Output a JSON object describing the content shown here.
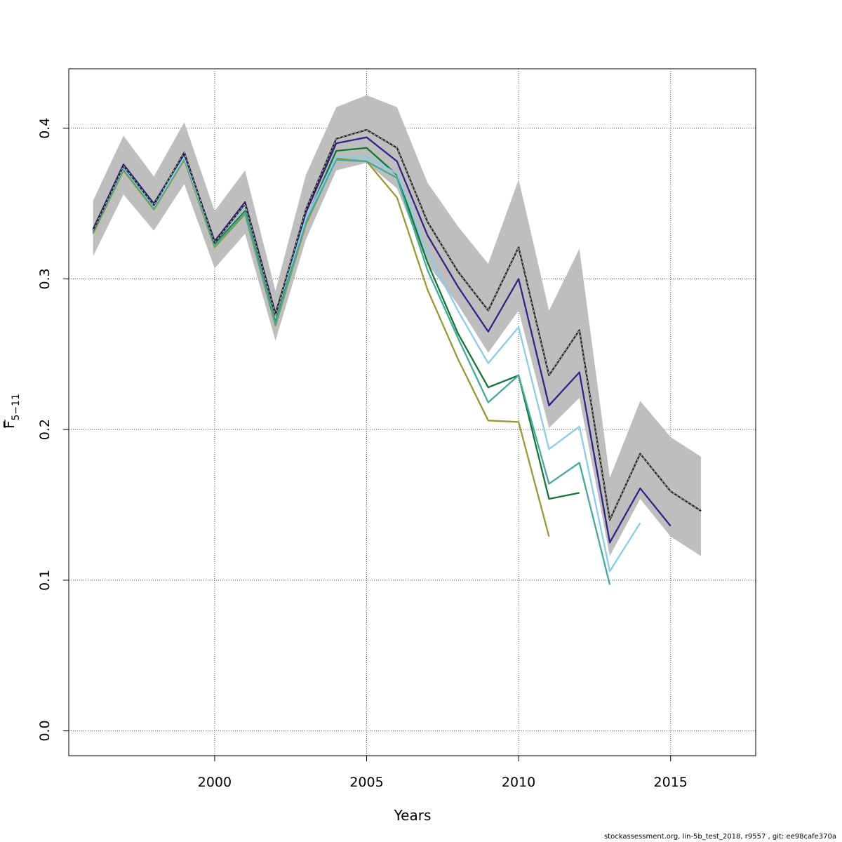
{
  "footer": "stockassessment.org, lin-5b_test_2018, r9557 , git: ee98cafe370a",
  "chart_data": {
    "type": "line",
    "title": "",
    "xlabel": "Years",
    "ylabel_main": "F",
    "ylabel_sub": "5−11",
    "xlim": [
      1995.2,
      2017.8
    ],
    "ylim": [
      -0.0165,
      0.4395
    ],
    "x_ticks": [
      2000,
      2005,
      2010,
      2015
    ],
    "x_tick_labels": [
      "2000",
      "2005",
      "2010",
      "2015"
    ],
    "y_ticks": [
      0.0,
      0.1,
      0.2,
      0.3,
      0.4
    ],
    "y_tick_labels": [
      "0.0",
      "0.1",
      "0.2",
      "0.3",
      "0.4"
    ],
    "grid": true,
    "confidence_band": {
      "color": "#bebebe",
      "x": [
        1996,
        1997,
        1998,
        1999,
        2000,
        2001,
        2002,
        2003,
        2004,
        2005,
        2006,
        2007,
        2008,
        2009,
        2010,
        2011,
        2012,
        2013,
        2014,
        2015,
        2016
      ],
      "lower": [
        0.315,
        0.356,
        0.332,
        0.363,
        0.307,
        0.33,
        0.259,
        0.326,
        0.372,
        0.377,
        0.36,
        0.31,
        0.283,
        0.251,
        0.279,
        0.201,
        0.221,
        0.116,
        0.154,
        0.129,
        0.116
      ],
      "upper": [
        0.352,
        0.395,
        0.368,
        0.404,
        0.345,
        0.372,
        0.292,
        0.369,
        0.414,
        0.422,
        0.414,
        0.364,
        0.335,
        0.31,
        0.366,
        0.279,
        0.32,
        0.168,
        0.219,
        0.195,
        0.182
      ]
    },
    "series": [
      {
        "color": "#999933",
        "x": [
          1996,
          1997,
          1998,
          1999,
          2000,
          2001,
          2002,
          2003,
          2004,
          2005,
          2006,
          2007,
          2008,
          2009,
          2010,
          2011
        ],
        "values": [
          0.33,
          0.372,
          0.346,
          0.379,
          0.321,
          0.343,
          0.269,
          0.336,
          0.38,
          0.378,
          0.354,
          0.293,
          0.247,
          0.206,
          0.205,
          0.129
        ]
      },
      {
        "color": "#117733",
        "x": [
          1996,
          1997,
          1998,
          1999,
          2000,
          2001,
          2002,
          2003,
          2004,
          2005,
          2006,
          2007,
          2008,
          2009,
          2010,
          2011,
          2012
        ],
        "values": [
          0.331,
          0.373,
          0.347,
          0.381,
          0.323,
          0.345,
          0.271,
          0.339,
          0.385,
          0.387,
          0.369,
          0.311,
          0.264,
          0.228,
          0.236,
          0.154,
          0.158
        ]
      },
      {
        "color": "#44aa99",
        "x": [
          1996,
          1997,
          1998,
          1999,
          2000,
          2001,
          2002,
          2003,
          2004,
          2005,
          2006,
          2007,
          2008,
          2009,
          2010,
          2011,
          2012,
          2013
        ],
        "values": [
          0.331,
          0.373,
          0.347,
          0.38,
          0.322,
          0.344,
          0.27,
          0.338,
          0.379,
          0.378,
          0.367,
          0.306,
          0.261,
          0.218,
          0.236,
          0.164,
          0.178,
          0.097
        ]
      },
      {
        "color": "#88ccee",
        "x": [
          1996,
          1997,
          1998,
          1999,
          2000,
          2001,
          2002,
          2003,
          2004,
          2005,
          2006,
          2007,
          2008,
          2009,
          2010,
          2011,
          2012,
          2013,
          2014
        ],
        "values": [
          0.332,
          0.374,
          0.348,
          0.381,
          0.324,
          0.349,
          0.276,
          0.34,
          0.381,
          0.381,
          0.37,
          0.318,
          0.279,
          0.244,
          0.268,
          0.187,
          0.202,
          0.106,
          0.138
        ]
      },
      {
        "color": "#332288",
        "x": [
          1996,
          1997,
          1998,
          1999,
          2000,
          2001,
          2002,
          2003,
          2004,
          2005,
          2006,
          2007,
          2008,
          2009,
          2010,
          2011,
          2012,
          2013,
          2014,
          2015
        ],
        "values": [
          0.333,
          0.376,
          0.35,
          0.383,
          0.325,
          0.351,
          0.277,
          0.344,
          0.39,
          0.394,
          0.378,
          0.329,
          0.295,
          0.265,
          0.3,
          0.216,
          0.238,
          0.125,
          0.161,
          0.136
        ]
      },
      {
        "color": "#222222",
        "dashed_overlay": true,
        "x": [
          1996,
          1997,
          1998,
          1999,
          2000,
          2001,
          2002,
          2003,
          2004,
          2005,
          2006,
          2007,
          2008,
          2009,
          2010,
          2011,
          2012,
          2013,
          2014,
          2015,
          2016
        ],
        "values": [
          0.332,
          0.375,
          0.349,
          0.384,
          0.324,
          0.35,
          0.276,
          0.346,
          0.393,
          0.399,
          0.387,
          0.338,
          0.305,
          0.279,
          0.321,
          0.236,
          0.266,
          0.14,
          0.184,
          0.159,
          0.146
        ]
      }
    ]
  }
}
